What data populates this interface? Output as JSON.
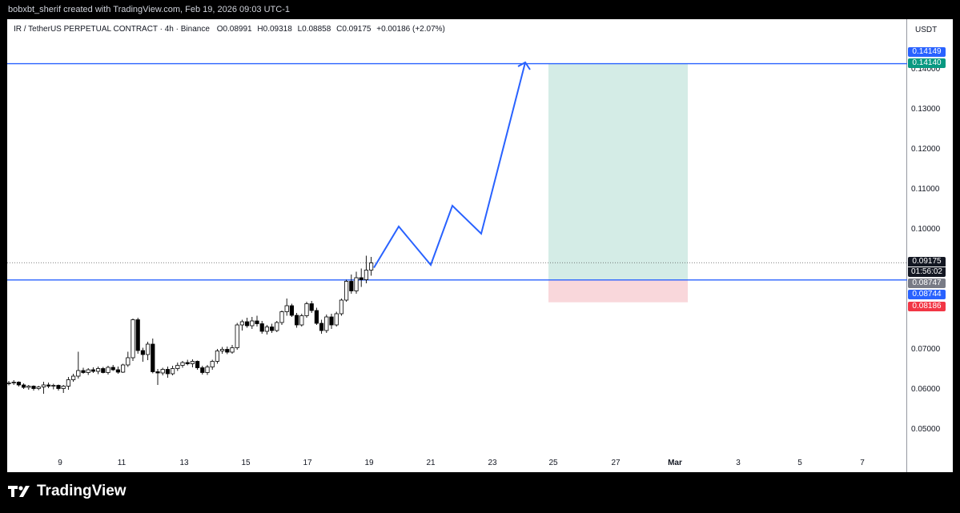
{
  "credit": "bobxbt_sherif created with TradingView.com, Feb 19, 2026 09:03 UTC-1",
  "header": {
    "symbol": "IR / TetherUS PERPETUAL CONTRACT · 4h · Binance",
    "o_label": "O",
    "o": "0.08991",
    "h_label": "H",
    "h": "0.09318",
    "l_label": "L",
    "l": "0.08858",
    "c_label": "C",
    "c": "0.09175",
    "change": "+0.00186 (+2.07%)"
  },
  "currency": "USDT",
  "brand": "TradingView",
  "colors": {
    "up": "#ffffff",
    "down": "#000000",
    "wick": "#000000",
    "line": "#2962ff",
    "target_zone": "#d4ece6",
    "stop_zone": "#f9d7db",
    "tag_blue": "#2962ff",
    "tag_green": "#089981",
    "tag_red": "#f23645",
    "tag_dark": "#131722",
    "tag_gray": "#787b86"
  },
  "chart_data": {
    "type": "candlestick",
    "y_axis": {
      "ticks": [
        "0.05000",
        "0.06000",
        "0.07000",
        "0.10000",
        "0.11000",
        "0.12000",
        "0.13000",
        "0.14000"
      ],
      "range": [
        0.0435,
        0.1535
      ]
    },
    "x_axis": {
      "ticks": [
        "9",
        "11",
        "13",
        "15",
        "17",
        "19",
        "21",
        "23",
        "25",
        "27",
        "Mar",
        "3",
        "5",
        "7"
      ]
    },
    "candles": [
      [
        0.0615,
        0.0622,
        0.0611,
        0.0617
      ],
      [
        0.0617,
        0.0624,
        0.0612,
        0.0619
      ],
      [
        0.0619,
        0.0621,
        0.0608,
        0.0612
      ],
      [
        0.0612,
        0.0616,
        0.0602,
        0.0606
      ],
      [
        0.0606,
        0.0612,
        0.06,
        0.0609
      ],
      [
        0.0609,
        0.0611,
        0.0598,
        0.0603
      ],
      [
        0.0603,
        0.061,
        0.0599,
        0.0607
      ],
      [
        0.0607,
        0.062,
        0.059,
        0.0612
      ],
      [
        0.0612,
        0.0618,
        0.0604,
        0.0609
      ],
      [
        0.0609,
        0.0615,
        0.0601,
        0.0611
      ],
      [
        0.0611,
        0.0613,
        0.0598,
        0.0603
      ],
      [
        0.0603,
        0.0612,
        0.0592,
        0.0609
      ],
      [
        0.0609,
        0.0632,
        0.06,
        0.0625
      ],
      [
        0.0625,
        0.064,
        0.062,
        0.0634
      ],
      [
        0.0634,
        0.0695,
        0.0628,
        0.0648
      ],
      [
        0.0648,
        0.0655,
        0.064,
        0.0643
      ],
      [
        0.0643,
        0.0654,
        0.0637,
        0.065
      ],
      [
        0.065,
        0.0656,
        0.0642,
        0.0646
      ],
      [
        0.0646,
        0.0658,
        0.0639,
        0.0653
      ],
      [
        0.0653,
        0.0657,
        0.0641,
        0.0643
      ],
      [
        0.0643,
        0.066,
        0.0638,
        0.0656
      ],
      [
        0.0656,
        0.0662,
        0.0647,
        0.065
      ],
      [
        0.065,
        0.0658,
        0.064,
        0.0644
      ],
      [
        0.0644,
        0.0665,
        0.0642,
        0.0662
      ],
      [
        0.0662,
        0.0695,
        0.0657,
        0.068
      ],
      [
        0.068,
        0.0778,
        0.0672,
        0.0775
      ],
      [
        0.0775,
        0.078,
        0.069,
        0.0698
      ],
      [
        0.0698,
        0.0705,
        0.067,
        0.0688
      ],
      [
        0.0688,
        0.072,
        0.0674,
        0.0714
      ],
      [
        0.0714,
        0.0728,
        0.0641,
        0.0645
      ],
      [
        0.0645,
        0.0652,
        0.0612,
        0.0642
      ],
      [
        0.0642,
        0.0655,
        0.0636,
        0.0651
      ],
      [
        0.0651,
        0.0658,
        0.063,
        0.064
      ],
      [
        0.064,
        0.066,
        0.0636,
        0.0653
      ],
      [
        0.0653,
        0.0668,
        0.0647,
        0.0661
      ],
      [
        0.0661,
        0.0672,
        0.0655,
        0.0668
      ],
      [
        0.0668,
        0.0675,
        0.0661,
        0.0665
      ],
      [
        0.0665,
        0.0676,
        0.0656,
        0.0671
      ],
      [
        0.0671,
        0.0673,
        0.065,
        0.0655
      ],
      [
        0.0655,
        0.066,
        0.0638,
        0.0643
      ],
      [
        0.0643,
        0.0662,
        0.0637,
        0.0657
      ],
      [
        0.0657,
        0.0675,
        0.065,
        0.0671
      ],
      [
        0.0671,
        0.0702,
        0.0665,
        0.0697
      ],
      [
        0.0697,
        0.0707,
        0.069,
        0.0701
      ],
      [
        0.0701,
        0.0708,
        0.0689,
        0.0694
      ],
      [
        0.0694,
        0.0712,
        0.069,
        0.0705
      ],
      [
        0.0705,
        0.0767,
        0.07,
        0.0762
      ],
      [
        0.0762,
        0.0775,
        0.0748,
        0.077
      ],
      [
        0.077,
        0.078,
        0.0755,
        0.076
      ],
      [
        0.076,
        0.0782,
        0.0752,
        0.0772
      ],
      [
        0.0772,
        0.0785,
        0.0758,
        0.0765
      ],
      [
        0.0765,
        0.0772,
        0.074,
        0.0746
      ],
      [
        0.0746,
        0.0762,
        0.0738,
        0.0757
      ],
      [
        0.0757,
        0.0765,
        0.0742,
        0.0748
      ],
      [
        0.0748,
        0.0772,
        0.0744,
        0.0768
      ],
      [
        0.0768,
        0.0798,
        0.0762,
        0.0795
      ],
      [
        0.0795,
        0.0828,
        0.0785,
        0.081
      ],
      [
        0.081,
        0.0815,
        0.0782,
        0.0786
      ],
      [
        0.0786,
        0.0792,
        0.0755,
        0.0762
      ],
      [
        0.0762,
        0.079,
        0.0758,
        0.0785
      ],
      [
        0.0785,
        0.082,
        0.078,
        0.0815
      ],
      [
        0.0815,
        0.0822,
        0.0792,
        0.0798
      ],
      [
        0.0798,
        0.0805,
        0.0762,
        0.0766
      ],
      [
        0.0766,
        0.0775,
        0.074,
        0.0748
      ],
      [
        0.0748,
        0.0788,
        0.0742,
        0.0782
      ],
      [
        0.0782,
        0.079,
        0.0752,
        0.0762
      ],
      [
        0.0762,
        0.0795,
        0.0758,
        0.079
      ],
      [
        0.079,
        0.0828,
        0.0785,
        0.0824
      ],
      [
        0.0824,
        0.0875,
        0.082,
        0.0871
      ],
      [
        0.0871,
        0.0888,
        0.084,
        0.0847
      ],
      [
        0.0847,
        0.0895,
        0.084,
        0.088
      ],
      [
        0.088,
        0.0903,
        0.0857,
        0.0875
      ],
      [
        0.0875,
        0.0935,
        0.0866,
        0.0899
      ],
      [
        0.0899,
        0.0932,
        0.0885,
        0.0917
      ]
    ],
    "long_position": {
      "entry": "0.08747",
      "target": "0.14140",
      "stop": "0.08186"
    },
    "horizontal_lines": [
      "0.14149",
      "0.08744"
    ],
    "last_price": "0.09175",
    "countdown": "01:56:02",
    "projection": [
      [
        0.0905,
        0.1008
      ],
      [
        0.1008,
        0.0912
      ],
      [
        0.0912,
        0.106
      ],
      [
        0.106,
        0.099
      ],
      [
        0.099,
        0.1418
      ]
    ]
  }
}
